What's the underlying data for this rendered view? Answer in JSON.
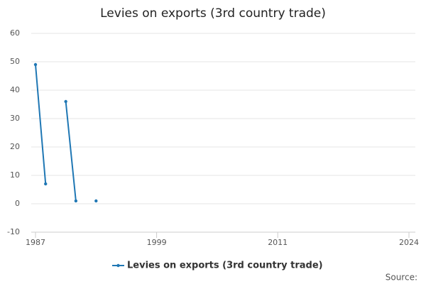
{
  "chart_data": {
    "type": "line",
    "title": "Levies on exports (3rd country trade)",
    "x": [
      1987,
      1988,
      1989,
      1990,
      1991,
      1992,
      1993
    ],
    "series": [
      {
        "name": "Levies on exports (3rd country trade)",
        "color": "#1f77b4",
        "values": [
          49,
          7,
          null,
          36,
          1,
          null,
          1
        ]
      }
    ],
    "xlim": [
      1987,
      2024
    ],
    "xticks": [
      1987,
      1999,
      2011,
      2024
    ],
    "ylim": [
      -10,
      60
    ],
    "yticks": [
      -10,
      0,
      10,
      20,
      30,
      40,
      50,
      60
    ],
    "grid": true,
    "legend": "bottom",
    "source": "Source:"
  }
}
